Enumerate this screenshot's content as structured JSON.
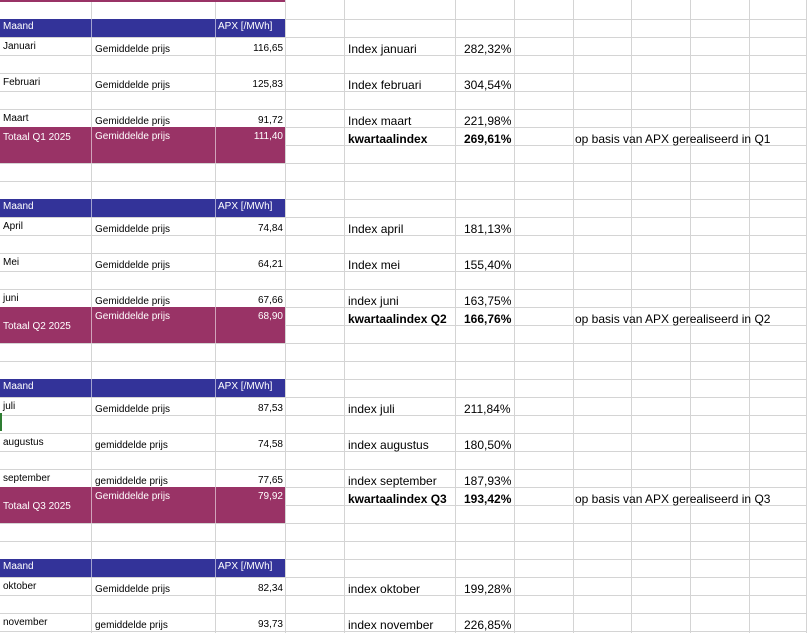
{
  "sheet": {
    "quarters": [
      {
        "header": {
          "maand": "Maand",
          "apx": "APX [/MWh]"
        },
        "months": [
          {
            "name": "Januari",
            "label": "Gemiddelde prijs",
            "price": "116,65",
            "index_label": "Index januari",
            "index_value": "282,32%"
          },
          {
            "name": "Februari",
            "label": "Gemiddelde prijs",
            "price": "125,83",
            "index_label": "Index februari",
            "index_value": "304,54%"
          },
          {
            "name": "Maart",
            "label": "Gemiddelde prijs",
            "price": "91,72",
            "index_label": "Index maart",
            "index_value": "221,98%"
          }
        ],
        "total": {
          "name": "Totaal Q1 2025",
          "label": "Gemiddelde prijs",
          "price": "111,40",
          "index_label": "kwartaalindex",
          "index_value": "269,61%",
          "note": "op basis van APX gerealiseerd in Q1"
        }
      },
      {
        "header": {
          "maand": "Maand",
          "apx": "APX [/MWh]"
        },
        "months": [
          {
            "name": "April",
            "label": "Gemiddelde prijs",
            "price": "74,84",
            "index_label": "Index april",
            "index_value": "181,13%"
          },
          {
            "name": "Mei",
            "label": "Gemiddelde prijs",
            "price": "64,21",
            "index_label": "Index mei",
            "index_value": "155,40%"
          },
          {
            "name": "juni",
            "label": "Gemiddelde prijs",
            "price": "67,66",
            "index_label": "index juni",
            "index_value": "163,75%"
          }
        ],
        "total": {
          "name": "Totaal Q2 2025",
          "label": "Gemiddelde prijs",
          "price": "68,90",
          "index_label": "kwartaalindex Q2",
          "index_value": "166,76%",
          "note": "op basis van APX gerealiseerd in Q2"
        }
      },
      {
        "header": {
          "maand": "Maand",
          "apx": "APX [/MWh]"
        },
        "months": [
          {
            "name": "juli",
            "label": "Gemiddelde prijs",
            "price": "87,53",
            "index_label": "index juli",
            "index_value": "211,84%"
          },
          {
            "name": "augustus",
            "label": "gemiddelde prijs",
            "price": "74,58",
            "index_label": "index augustus",
            "index_value": "180,50%"
          },
          {
            "name": "september",
            "label": "gemiddelde prijs",
            "price": "77,65",
            "index_label": "index september",
            "index_value": "187,93%"
          }
        ],
        "total": {
          "name": "Totaal Q3 2025",
          "label": "Gemiddelde prijs",
          "price": "79,92",
          "index_label": "kwartaalindex Q3",
          "index_value": "193,42%",
          "note": "op basis van APX gerealiseerd in Q3"
        }
      },
      {
        "header": {
          "maand": "Maand",
          "apx": "APX [/MWh]"
        },
        "months": [
          {
            "name": "oktober",
            "label": "Gemiddelde prijs",
            "price": "82,34",
            "index_label": "index oktober",
            "index_value": "199,28%"
          },
          {
            "name": "november",
            "label": "gemiddelde prijs",
            "price": "93,73",
            "index_label": "index november",
            "index_value": "226,85%"
          }
        ]
      }
    ]
  },
  "colors": {
    "header_band": "#333399",
    "total_band": "#993366",
    "grid": "#d4d4d4"
  }
}
